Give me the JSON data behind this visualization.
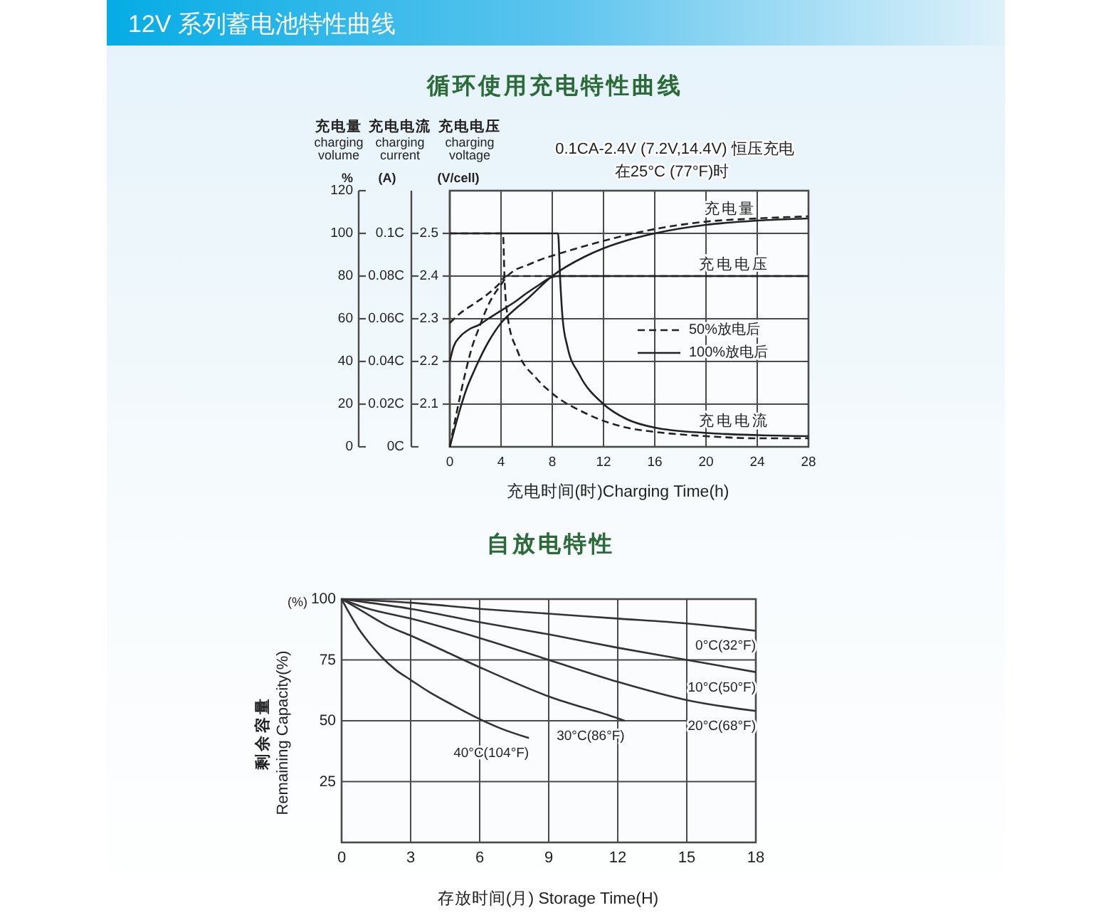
{
  "chart_data": [
    {
      "type": "other",
      "title": "12V 系列蓄电池特性曲线"
    },
    {
      "type": "line",
      "title": "循环使用充电特性曲线",
      "xlabel": "充电时间(时)Charging Time(h)",
      "ylabel": "充电电压\ncharging\nvoltage\n(V/cell)",
      "y2label": "充电电流\ncharging\ncurrent\n(A)",
      "y3label": "充电量\ncharging\nvolume\n%",
      "annotations": [
        "0.1CA-2.4V (7.2V,14.4V) 恒压充电",
        "在25°C (77°F)时",
        "充电量",
        "充电电压",
        "充电电流"
      ],
      "xlim": [
        0,
        28
      ],
      "xticks": [
        0,
        4,
        8,
        12,
        16,
        20,
        24,
        28
      ],
      "ylim": [
        2.0,
        2.6
      ],
      "yticks": [
        2.1,
        2.2,
        2.3,
        2.4,
        2.5
      ],
      "y2lim": [
        0,
        0.12
      ],
      "y2ticks": [
        {
          "value": 0,
          "label": "0C"
        },
        {
          "value": 0.02,
          "label": "0.02C"
        },
        {
          "value": 0.04,
          "label": "0.04C"
        },
        {
          "value": 0.06,
          "label": "0.06C"
        },
        {
          "value": 0.08,
          "label": "0.08C"
        },
        {
          "value": 0.1,
          "label": "0.1C"
        }
      ],
      "y3lim": [
        0,
        120
      ],
      "y3ticks": [
        0,
        20,
        40,
        60,
        80,
        100,
        120
      ],
      "grid": true,
      "legend": "right",
      "series": [
        {
          "name": "50%放电后",
          "color": "#222222",
          "line_style": "dashed",
          "axis": "y3",
          "x": [
            0,
            0.5,
            1.19,
            1.7,
            2.3,
            3.05,
            4,
            4.5,
            5,
            6,
            7,
            8,
            10.5,
            12,
            14,
            16,
            20,
            24,
            28
          ],
          "values": [
            0,
            15,
            34,
            46,
            56,
            67,
            76,
            80,
            82.5,
            85,
            87.5,
            89.5,
            94,
            96.5,
            99.5,
            102,
            105.5,
            107,
            108
          ]
        },
        {
          "name": "100%放电后",
          "color": "#222222",
          "line_style": "solid",
          "axis": "y3",
          "x": [
            0,
            0.4,
            0.82,
            1.3,
            1.93,
            3,
            4,
            5,
            6,
            8,
            10.5,
            12,
            14,
            16,
            20,
            24,
            28
          ],
          "values": [
            0,
            9,
            18,
            27,
            36,
            49,
            58,
            64,
            69,
            80,
            89,
            93,
            97,
            100,
            104,
            106,
            107
          ]
        },
        {
          "color": "#222222",
          "line_style": "dashed",
          "x": [
            0,
            0.82,
            1.93,
            3.05,
            3.98,
            4.35,
            28
          ],
          "values": [
            2.29,
            2.313,
            2.336,
            2.36,
            2.386,
            2.4,
            2.4
          ]
        },
        {
          "color": "#222222",
          "line_style": "solid",
          "x": [
            0,
            0.3,
            0.8,
            1.5,
            2.3,
            3,
            4,
            5,
            6,
            7,
            8,
            8.5,
            28
          ],
          "values": [
            2.2,
            2.235,
            2.258,
            2.275,
            2.286,
            2.3,
            2.319,
            2.338,
            2.36,
            2.38,
            2.398,
            2.4,
            2.4
          ]
        },
        {
          "color": "#222222",
          "line_style": "dashed",
          "axis": "y2",
          "x": [
            0,
            4.15,
            4.28,
            4.54,
            5.28,
            6.77,
            8,
            10.5,
            13.8,
            16,
            20,
            24,
            28
          ],
          "values": [
            0.1,
            0.1,
            0.078,
            0.06,
            0.045,
            0.032,
            0.025,
            0.016,
            0.009,
            0.007,
            0.005,
            0.004,
            0.004
          ]
        },
        {
          "color": "#222222",
          "line_style": "solid",
          "axis": "y2",
          "x": [
            0,
            8.45,
            8.62,
            8.81,
            9.18,
            10.1,
            12,
            13.8,
            16,
            20,
            24,
            28
          ],
          "values": [
            0.1,
            0.1,
            0.078,
            0.06,
            0.047,
            0.034,
            0.02,
            0.013,
            0.009,
            0.0065,
            0.0055,
            0.005
          ]
        }
      ]
    },
    {
      "type": "line",
      "title": "自放电特性",
      "xlabel": "存放时间(月) Storage Time(H)",
      "ylabel": "剩余容量\nRemaining Capacity(%)",
      "annotations": [
        "(%)"
      ],
      "xlim": [
        0,
        18
      ],
      "xticks": [
        0,
        3,
        6,
        9,
        12,
        15,
        18
      ],
      "ylim": [
        0,
        100
      ],
      "yticks": [
        25,
        50,
        75,
        100
      ],
      "grid": true,
      "series": [
        {
          "name": "0°C(32°F)",
          "color": "#333333",
          "x": [
            0,
            3,
            6,
            9,
            12,
            15,
            18
          ],
          "values": [
            100,
            98.5,
            96,
            94,
            92,
            90,
            87
          ]
        },
        {
          "name": "10°C(50°F)",
          "color": "#333333",
          "x": [
            0,
            3,
            6,
            9,
            12,
            15,
            18
          ],
          "values": [
            100,
            96,
            90.5,
            85.5,
            80,
            75,
            70
          ]
        },
        {
          "name": "20°C(68°F)",
          "color": "#333333",
          "x": [
            0,
            1,
            3,
            6,
            9,
            12,
            15,
            18
          ],
          "values": [
            100,
            96.5,
            92,
            84,
            75,
            66,
            58.5,
            54
          ]
        },
        {
          "name": "30°C(86°F)",
          "color": "#333333",
          "x": [
            0,
            1,
            2,
            3,
            4.5,
            6,
            9,
            12,
            12.3
          ],
          "values": [
            100,
            94.5,
            89,
            85,
            78.5,
            72,
            60,
            51,
            50
          ]
        },
        {
          "name": "40°C(104°F)",
          "color": "#333333",
          "x": [
            0,
            0.31,
            0.72,
            1.24,
            1.75,
            2.37,
            3,
            3.81,
            4.84,
            5.87,
            6.9,
            8.14
          ],
          "values": [
            100,
            94.6,
            88.1,
            81.5,
            76.1,
            70.8,
            66.8,
            61.8,
            56.4,
            51.3,
            46.9,
            42.9
          ]
        }
      ]
    }
  ]
}
